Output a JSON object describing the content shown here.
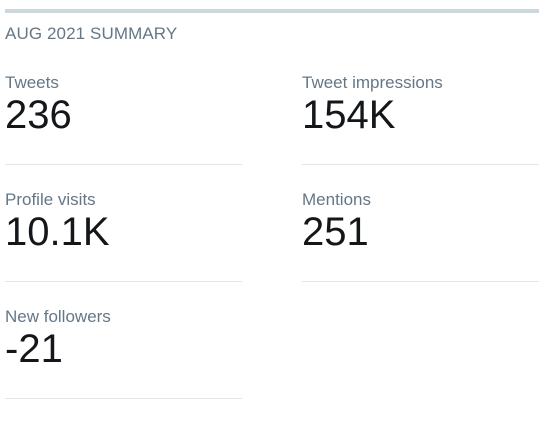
{
  "summary": {
    "title": "AUG 2021 SUMMARY",
    "metrics": [
      {
        "label": "Tweets",
        "value": "236"
      },
      {
        "label": "Tweet impressions",
        "value": "154K"
      },
      {
        "label": "Profile visits",
        "value": "10.1K"
      },
      {
        "label": "Mentions",
        "value": "251"
      },
      {
        "label": "New followers",
        "value": "-21"
      }
    ]
  },
  "colors": {
    "label": "#657786",
    "value": "#14171a",
    "divider": "#e1e8ed",
    "top_bar": "#ccd6dd"
  }
}
